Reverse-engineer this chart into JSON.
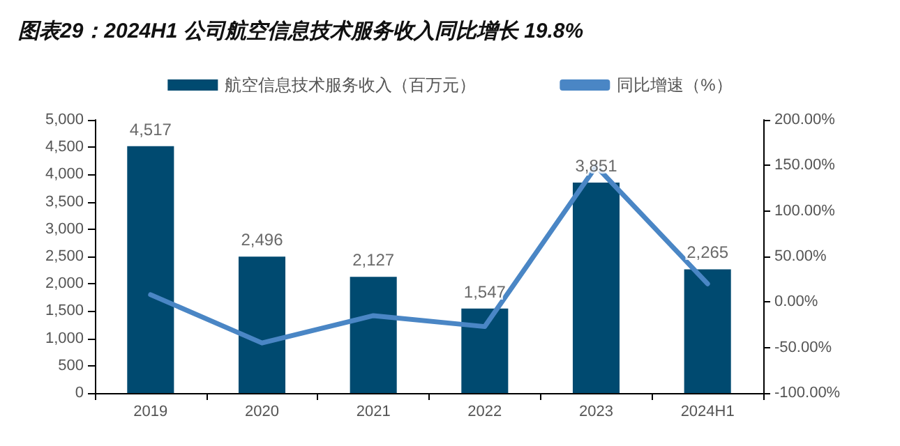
{
  "chart_data": {
    "type": "bar",
    "title": "图表29：2024H1 公司航空信息技术服务收入同比增长 19.8%",
    "categories": [
      "2019",
      "2020",
      "2021",
      "2022",
      "2023",
      "2024H1"
    ],
    "series": [
      {
        "name": "航空信息技术服务收入（百万元）",
        "color": "#004a70",
        "values": [
          4517,
          2496,
          2127,
          1547,
          3851,
          2265
        ],
        "value_labels": [
          "4,517",
          "2,496",
          "2,127",
          "1,547",
          "3,851",
          "2,265"
        ]
      },
      {
        "name": "同比增速（%）",
        "type": "line",
        "axis": "y2",
        "color": "#4a86c5",
        "values": [
          8,
          -45,
          -15,
          -27,
          149,
          20
        ]
      }
    ],
    "ylim": [
      0,
      5000
    ],
    "yticks": [
      0,
      {
        "value": 500,
        "label": "500"
      },
      {
        "value": 1000,
        "label": "1,000"
      },
      {
        "value": 1500,
        "label": "1,500"
      },
      {
        "value": 2000,
        "label": "2,000"
      },
      {
        "value": 2500,
        "label": "2,500"
      },
      {
        "value": 3000,
        "label": "3,000"
      },
      {
        "value": 3500,
        "label": "3,500"
      },
      {
        "value": 4000,
        "label": "4,000"
      },
      {
        "value": 4500,
        "label": "4,500"
      },
      {
        "value": 5000,
        "label": "5,000"
      }
    ],
    "y2lim": [
      -100,
      200
    ],
    "y2ticks": [
      {
        "value": -100,
        "label": "-100.00%"
      },
      {
        "value": -50,
        "label": "-50.00%"
      },
      {
        "value": 0,
        "label": "0.00%"
      },
      {
        "value": 50,
        "label": "50.00%"
      },
      {
        "value": 100,
        "label": "100.00%"
      },
      {
        "value": 150,
        "label": "150.00%"
      },
      {
        "value": 200,
        "label": "200.00%"
      }
    ],
    "legend": "top",
    "grid": false,
    "marker": "none",
    "line_style": "solid"
  }
}
